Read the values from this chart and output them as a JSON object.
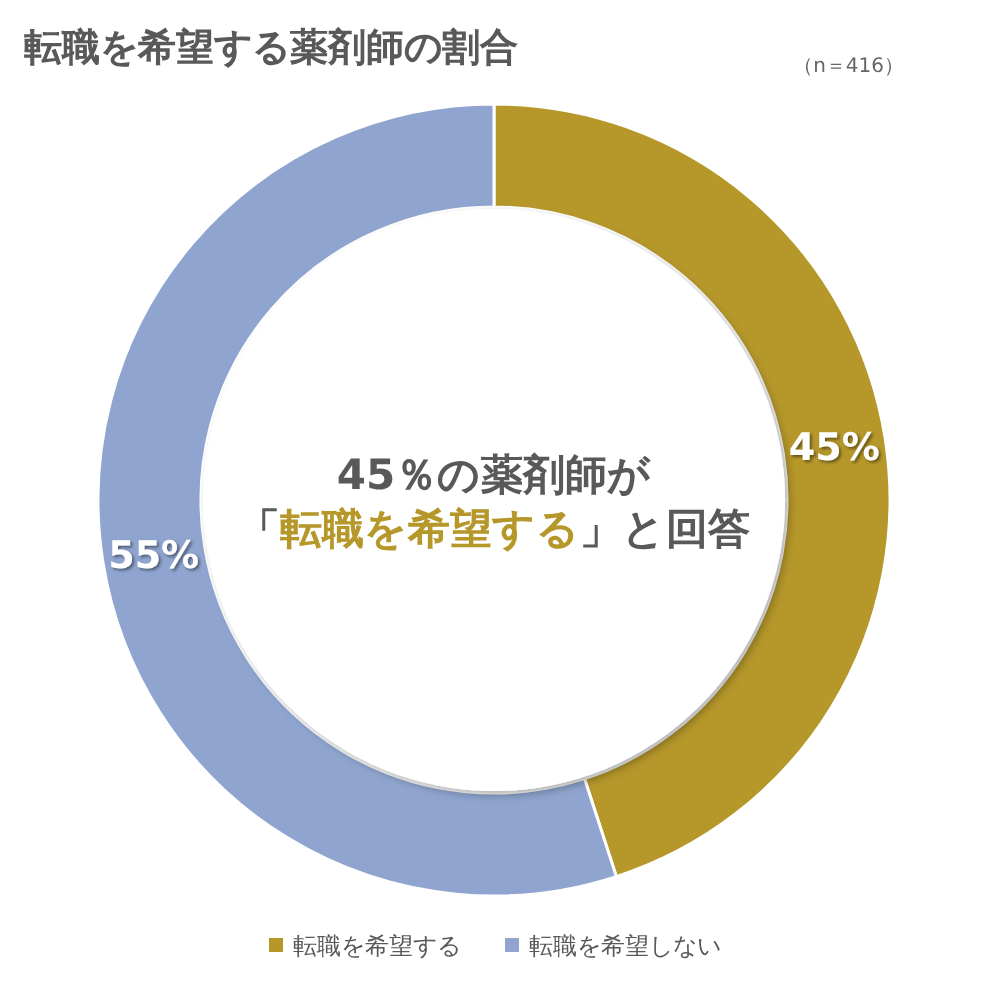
{
  "chart_data": {
    "type": "donut",
    "title": "転職を希望する薬剤師の割合",
    "annotations": [
      "（n＝416）",
      "45％の薬剤師が",
      "「転職を希望する」と回答"
    ],
    "categories": [
      "転職を希望する",
      "転職を希望しない"
    ],
    "values": [
      45,
      55
    ],
    "colors": [
      "#b5972a",
      "#8fa5cf"
    ],
    "value_labels": [
      "45%",
      "55%"
    ],
    "legend": "bottom"
  }
}
